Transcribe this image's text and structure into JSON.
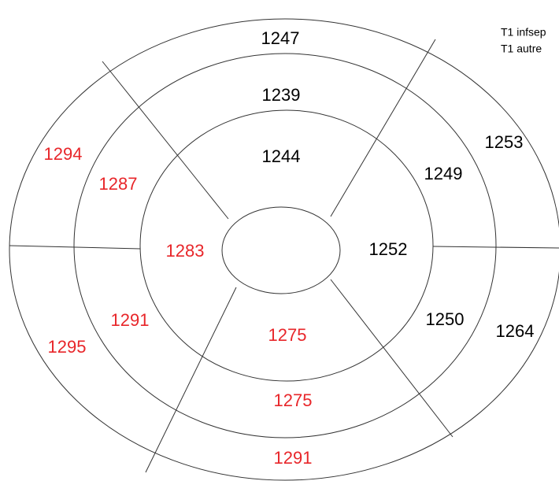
{
  "legend": [
    "T1 infsep",
    "T1 autre"
  ],
  "segments": [
    {
      "value": 1247,
      "color": "#000000"
    },
    {
      "value": 1239,
      "color": "#000000"
    },
    {
      "value": 1244,
      "color": "#000000"
    },
    {
      "value": 1253,
      "color": "#000000"
    },
    {
      "value": 1249,
      "color": "#000000"
    },
    {
      "value": 1252,
      "color": "#000000"
    },
    {
      "value": 1250,
      "color": "#000000"
    },
    {
      "value": 1264,
      "color": "#000000"
    },
    {
      "value": 1275,
      "color": "#e8262a"
    },
    {
      "value": 1275,
      "color": "#e8262a"
    },
    {
      "value": 1291,
      "color": "#e8262a"
    },
    {
      "value": 1295,
      "color": "#e8262a"
    },
    {
      "value": 1291,
      "color": "#e8262a"
    },
    {
      "value": 1283,
      "color": "#e8262a"
    },
    {
      "value": 1287,
      "color": "#e8262a"
    },
    {
      "value": 1294,
      "color": "#e8262a"
    }
  ]
}
